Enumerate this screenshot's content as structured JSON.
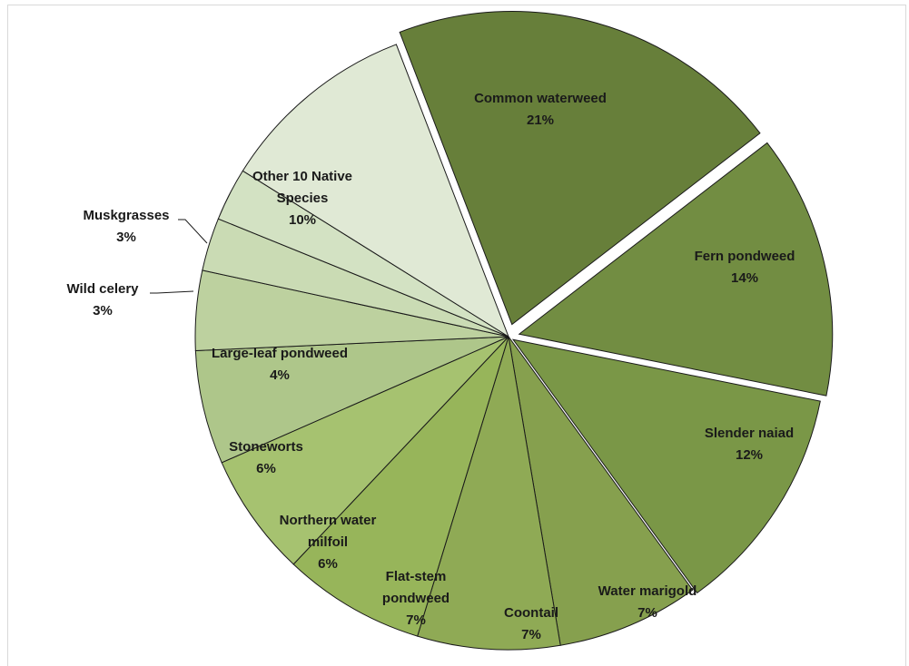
{
  "chart_data": {
    "type": "pie",
    "title": "",
    "slices": [
      {
        "name": "Common waterweed",
        "percent_label": "21%",
        "value": 20.8,
        "color": "#677f3a"
      },
      {
        "name": "Fern pondweed",
        "percent_label": "14%",
        "value": 13.9,
        "color": "#728d42"
      },
      {
        "name": "Slender naiad",
        "percent_label": "12%",
        "value": 12.1,
        "color": "#7a9747"
      },
      {
        "name": "Water marigold",
        "percent_label": "7%",
        "value": 7.5,
        "color": "#86a04e"
      },
      {
        "name": "Coontail",
        "percent_label": "7%",
        "value": 7.5,
        "color": "#8faa55"
      },
      {
        "name": "Flat-stem pondweed",
        "percent_label": "7%",
        "value": 7.5,
        "color": "#97b55a"
      },
      {
        "name": "Northern water milfoil",
        "percent_label": "6%",
        "value": 6.5,
        "color": "#a6c270"
      },
      {
        "name": "Stoneworts",
        "percent_label": "6%",
        "value": 6.0,
        "color": "#aec68a"
      },
      {
        "name": "Large-leaf pondweed",
        "percent_label": "4%",
        "value": 4.2,
        "color": "#bdd19f"
      },
      {
        "name": "Wild celery",
        "percent_label": "3%",
        "value": 2.8,
        "color": "#cadbb4"
      },
      {
        "name": "Muskgrasses",
        "percent_label": "3%",
        "value": 2.8,
        "color": "#d3e2c3"
      },
      {
        "name": "Other 10 Native Species",
        "percent_label": "10%",
        "value": 10.5,
        "color": "#e0e9d5"
      }
    ]
  }
}
